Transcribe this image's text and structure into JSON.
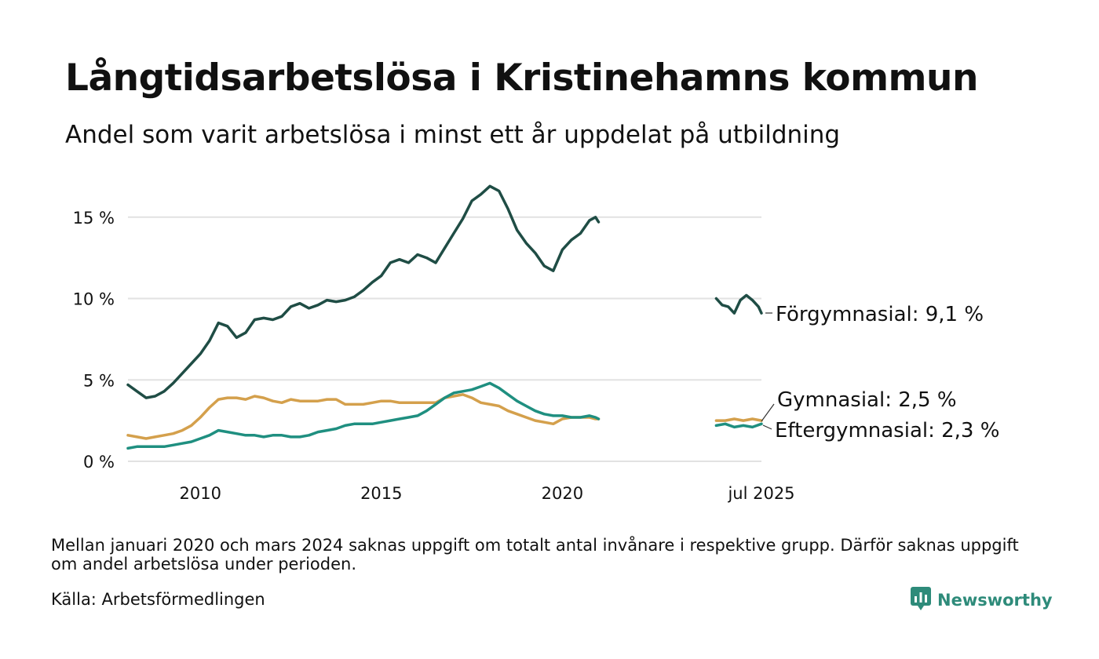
{
  "header": {
    "title": "Långtidsarbetslösa i Kristinehamns kommun",
    "subtitle": "Andel som varit arbetslösa i minst ett år uppdelat på utbildning"
  },
  "footer": {
    "note": "Mellan januari 2020 och mars 2024 saknas uppgift om totalt antal invånare i respektive grupp. Därför saknas uppgift om andel arbetslösa under perioden.",
    "source": "Källa: Arbetsförmedlingen",
    "brand": "Newsworthy",
    "brand_icon": "newsworthy-logo-icon",
    "brand_color": "#2e8b7a"
  },
  "chart_data": {
    "type": "line",
    "xlabel": "",
    "ylabel": "",
    "ylim": [
      0,
      17.5
    ],
    "xlim": [
      "2008-01",
      "2025-07"
    ],
    "yticks": [
      0,
      5,
      10,
      15
    ],
    "ytick_labels": [
      "0 %",
      "5 %",
      "10 %",
      "15 %"
    ],
    "xtick_labels": [
      {
        "label": "2010",
        "date": "2010-01"
      },
      {
        "label": "2015",
        "date": "2015-01"
      },
      {
        "label": "2020",
        "date": "2020-01"
      },
      {
        "label": "jul 2025",
        "date": "2025-07"
      }
    ],
    "grid": true,
    "legend": "direct labels at right end of lines",
    "series": [
      {
        "name": "Förgymnasial",
        "end_label": "Förgymnasial: 9,1 %",
        "color": "#1f4d45",
        "segments": [
          [
            [
              "2008-01",
              4.7
            ],
            [
              "2008-04",
              4.3
            ],
            [
              "2008-07",
              3.9
            ],
            [
              "2008-10",
              4.0
            ],
            [
              "2009-01",
              4.3
            ],
            [
              "2009-04",
              4.8
            ],
            [
              "2009-07",
              5.4
            ],
            [
              "2009-10",
              6.0
            ],
            [
              "2010-01",
              6.6
            ],
            [
              "2010-04",
              7.4
            ],
            [
              "2010-07",
              8.5
            ],
            [
              "2010-10",
              8.3
            ],
            [
              "2011-01",
              7.6
            ],
            [
              "2011-04",
              7.9
            ],
            [
              "2011-07",
              8.7
            ],
            [
              "2011-10",
              8.8
            ],
            [
              "2012-01",
              8.7
            ],
            [
              "2012-04",
              8.9
            ],
            [
              "2012-07",
              9.5
            ],
            [
              "2012-10",
              9.7
            ],
            [
              "2013-01",
              9.4
            ],
            [
              "2013-04",
              9.6
            ],
            [
              "2013-07",
              9.9
            ],
            [
              "2013-10",
              9.8
            ],
            [
              "2014-01",
              9.9
            ],
            [
              "2014-04",
              10.1
            ],
            [
              "2014-07",
              10.5
            ],
            [
              "2014-10",
              11.0
            ],
            [
              "2015-01",
              11.4
            ],
            [
              "2015-04",
              12.2
            ],
            [
              "2015-07",
              12.4
            ],
            [
              "2015-10",
              12.2
            ],
            [
              "2016-01",
              12.7
            ],
            [
              "2016-04",
              12.5
            ],
            [
              "2016-07",
              12.2
            ],
            [
              "2016-10",
              13.1
            ],
            [
              "2017-01",
              14.0
            ],
            [
              "2017-04",
              14.9
            ],
            [
              "2017-07",
              16.0
            ],
            [
              "2017-10",
              16.4
            ],
            [
              "2018-01",
              16.9
            ],
            [
              "2018-04",
              16.6
            ],
            [
              "2018-07",
              15.5
            ],
            [
              "2018-10",
              14.2
            ],
            [
              "2019-01",
              13.4
            ],
            [
              "2019-04",
              12.8
            ],
            [
              "2019-07",
              12.0
            ],
            [
              "2019-10",
              11.7
            ],
            [
              "2020-01",
              13.0
            ],
            [
              "2020-04",
              13.6
            ],
            [
              "2020-07",
              14.0
            ],
            [
              "2020-10",
              14.8
            ],
            [
              "2020-12",
              15.0
            ],
            [
              "2021-01",
              14.7
            ]
          ],
          [
            [
              "2024-04",
              10.0
            ],
            [
              "2024-06",
              9.6
            ],
            [
              "2024-08",
              9.5
            ],
            [
              "2024-10",
              9.1
            ],
            [
              "2024-12",
              9.9
            ],
            [
              "2025-02",
              10.2
            ],
            [
              "2025-04",
              9.9
            ],
            [
              "2025-06",
              9.5
            ],
            [
              "2025-07",
              9.1
            ]
          ]
        ]
      },
      {
        "name": "Gymnasial",
        "end_label": "Gymnasial: 2,5 %",
        "color": "#d4a04c",
        "segments": [
          [
            [
              "2008-01",
              1.6
            ],
            [
              "2008-04",
              1.5
            ],
            [
              "2008-07",
              1.4
            ],
            [
              "2008-10",
              1.5
            ],
            [
              "2009-01",
              1.6
            ],
            [
              "2009-04",
              1.7
            ],
            [
              "2009-07",
              1.9
            ],
            [
              "2009-10",
              2.2
            ],
            [
              "2010-01",
              2.7
            ],
            [
              "2010-04",
              3.3
            ],
            [
              "2010-07",
              3.8
            ],
            [
              "2010-10",
              3.9
            ],
            [
              "2011-01",
              3.9
            ],
            [
              "2011-04",
              3.8
            ],
            [
              "2011-07",
              4.0
            ],
            [
              "2011-10",
              3.9
            ],
            [
              "2012-01",
              3.7
            ],
            [
              "2012-04",
              3.6
            ],
            [
              "2012-07",
              3.8
            ],
            [
              "2012-10",
              3.7
            ],
            [
              "2013-01",
              3.7
            ],
            [
              "2013-04",
              3.7
            ],
            [
              "2013-07",
              3.8
            ],
            [
              "2013-10",
              3.8
            ],
            [
              "2014-01",
              3.5
            ],
            [
              "2014-04",
              3.5
            ],
            [
              "2014-07",
              3.5
            ],
            [
              "2014-10",
              3.6
            ],
            [
              "2015-01",
              3.7
            ],
            [
              "2015-04",
              3.7
            ],
            [
              "2015-07",
              3.6
            ],
            [
              "2015-10",
              3.6
            ],
            [
              "2016-01",
              3.6
            ],
            [
              "2016-04",
              3.6
            ],
            [
              "2016-07",
              3.6
            ],
            [
              "2016-10",
              3.9
            ],
            [
              "2017-01",
              4.0
            ],
            [
              "2017-04",
              4.1
            ],
            [
              "2017-07",
              3.9
            ],
            [
              "2017-10",
              3.6
            ],
            [
              "2018-01",
              3.5
            ],
            [
              "2018-04",
              3.4
            ],
            [
              "2018-07",
              3.1
            ],
            [
              "2018-10",
              2.9
            ],
            [
              "2019-01",
              2.7
            ],
            [
              "2019-04",
              2.5
            ],
            [
              "2019-07",
              2.4
            ],
            [
              "2019-10",
              2.3
            ],
            [
              "2020-01",
              2.6
            ],
            [
              "2020-04",
              2.7
            ],
            [
              "2020-07",
              2.7
            ],
            [
              "2020-10",
              2.7
            ],
            [
              "2020-12",
              2.6
            ],
            [
              "2021-01",
              2.6
            ]
          ],
          [
            [
              "2024-04",
              2.5
            ],
            [
              "2024-07",
              2.5
            ],
            [
              "2024-10",
              2.6
            ],
            [
              "2025-01",
              2.5
            ],
            [
              "2025-04",
              2.6
            ],
            [
              "2025-07",
              2.5
            ]
          ]
        ]
      },
      {
        "name": "Eftergymnasial",
        "end_label": "Eftergymnasial: 2,3 %",
        "color": "#1f8f80",
        "segments": [
          [
            [
              "2008-01",
              0.8
            ],
            [
              "2008-04",
              0.9
            ],
            [
              "2008-07",
              0.9
            ],
            [
              "2008-10",
              0.9
            ],
            [
              "2009-01",
              0.9
            ],
            [
              "2009-04",
              1.0
            ],
            [
              "2009-07",
              1.1
            ],
            [
              "2009-10",
              1.2
            ],
            [
              "2010-01",
              1.4
            ],
            [
              "2010-04",
              1.6
            ],
            [
              "2010-07",
              1.9
            ],
            [
              "2010-10",
              1.8
            ],
            [
              "2011-01",
              1.7
            ],
            [
              "2011-04",
              1.6
            ],
            [
              "2011-07",
              1.6
            ],
            [
              "2011-10",
              1.5
            ],
            [
              "2012-01",
              1.6
            ],
            [
              "2012-04",
              1.6
            ],
            [
              "2012-07",
              1.5
            ],
            [
              "2012-10",
              1.5
            ],
            [
              "2013-01",
              1.6
            ],
            [
              "2013-04",
              1.8
            ],
            [
              "2013-07",
              1.9
            ],
            [
              "2013-10",
              2.0
            ],
            [
              "2014-01",
              2.2
            ],
            [
              "2014-04",
              2.3
            ],
            [
              "2014-07",
              2.3
            ],
            [
              "2014-10",
              2.3
            ],
            [
              "2015-01",
              2.4
            ],
            [
              "2015-04",
              2.5
            ],
            [
              "2015-07",
              2.6
            ],
            [
              "2015-10",
              2.7
            ],
            [
              "2016-01",
              2.8
            ],
            [
              "2016-04",
              3.1
            ],
            [
              "2016-07",
              3.5
            ],
            [
              "2016-10",
              3.9
            ],
            [
              "2017-01",
              4.2
            ],
            [
              "2017-04",
              4.3
            ],
            [
              "2017-07",
              4.4
            ],
            [
              "2017-10",
              4.6
            ],
            [
              "2018-01",
              4.8
            ],
            [
              "2018-04",
              4.5
            ],
            [
              "2018-07",
              4.1
            ],
            [
              "2018-10",
              3.7
            ],
            [
              "2019-01",
              3.4
            ],
            [
              "2019-04",
              3.1
            ],
            [
              "2019-07",
              2.9
            ],
            [
              "2019-10",
              2.8
            ],
            [
              "2020-01",
              2.8
            ],
            [
              "2020-04",
              2.7
            ],
            [
              "2020-07",
              2.7
            ],
            [
              "2020-10",
              2.8
            ],
            [
              "2020-12",
              2.7
            ],
            [
              "2021-01",
              2.6
            ]
          ],
          [
            [
              "2024-04",
              2.2
            ],
            [
              "2024-07",
              2.3
            ],
            [
              "2024-10",
              2.1
            ],
            [
              "2025-01",
              2.2
            ],
            [
              "2025-04",
              2.1
            ],
            [
              "2025-07",
              2.3
            ]
          ]
        ]
      }
    ]
  }
}
